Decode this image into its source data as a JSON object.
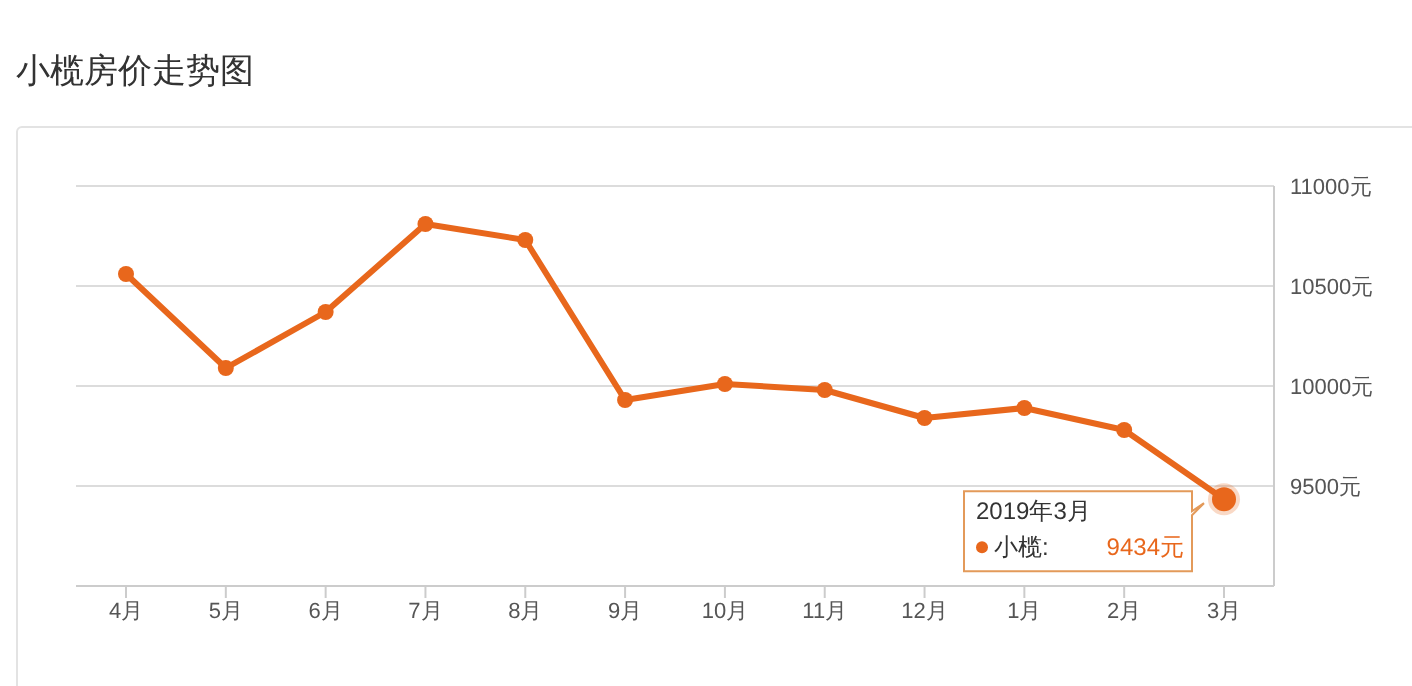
{
  "chart_data": {
    "type": "line",
    "title": "小榄房价走势图",
    "categories": [
      "4月",
      "5月",
      "6月",
      "7月",
      "8月",
      "9月",
      "10月",
      "11月",
      "12月",
      "1月",
      "2月",
      "3月"
    ],
    "series": [
      {
        "name": "小榄:",
        "color": "#e8671c",
        "values": [
          10560,
          10090,
          10370,
          10810,
          10730,
          9930,
          10010,
          9980,
          9840,
          9890,
          9780,
          9434
        ],
        "value_labels": [
          null,
          null,
          null,
          null,
          null,
          null,
          null,
          null,
          null,
          null,
          null,
          "9434元"
        ]
      }
    ],
    "ylim": [
      9000,
      11000
    ],
    "yticks": [
      {
        "value": 9500,
        "label": "9500元"
      },
      {
        "value": 10000,
        "label": "10000元"
      },
      {
        "value": 10500,
        "label": "10500元"
      },
      {
        "value": 11000,
        "label": "11000元"
      }
    ],
    "annotations": [
      "2019年3月"
    ],
    "grid": "y",
    "marker": "circle",
    "line_style": "solid"
  }
}
